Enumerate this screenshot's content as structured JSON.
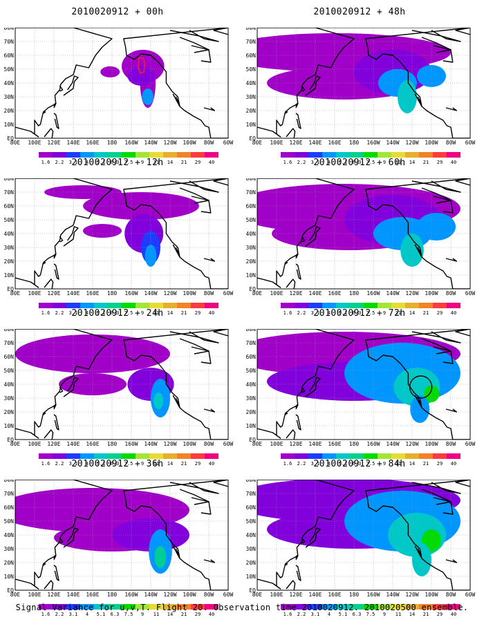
{
  "panels": [
    {
      "title": "2010020912 + 00h",
      "has_box": true,
      "circles": []
    },
    {
      "title": "2010020912 + 48h",
      "has_box": false,
      "circles": []
    },
    {
      "title": "2010020912 + 12h",
      "has_box": false,
      "circles": []
    },
    {
      "title": "2010020912 + 60h",
      "has_box": false,
      "circles": []
    },
    {
      "title": "2010020912 + 24h",
      "has_box": false,
      "circles": []
    },
    {
      "title": "2010020912 + 72h",
      "has_box": false,
      "circles": [
        {
          "lon": -111,
          "lat": 38
        }
      ]
    },
    {
      "title": "2010020912 + 36h",
      "has_box": false,
      "circles": []
    },
    {
      "title": "2010020912 + 84h",
      "has_box": false,
      "circles": []
    }
  ],
  "lat_labels": [
    "80N",
    "70N",
    "60N",
    "50N",
    "40N",
    "30N",
    "20N",
    "10N",
    "EQ"
  ],
  "lon_labels": [
    "80E",
    "100E",
    "120E",
    "140E",
    "160E",
    "180",
    "160W",
    "140W",
    "120W",
    "100W",
    "80W",
    "60W"
  ],
  "colorbar": {
    "labels": [
      "1.6",
      "2.2",
      "3.1",
      "4",
      "5.1",
      "6.3",
      "7.5",
      "9",
      "11",
      "14",
      "21",
      "29",
      "40"
    ],
    "colors": [
      "#a000c8",
      "#8200dc",
      "#1e3cff",
      "#0096ff",
      "#00c8c8",
      "#00d28c",
      "#00dc00",
      "#a0e632",
      "#e6dc32",
      "#e6af2d",
      "#f08228",
      "#fa3c3c",
      "#f00082"
    ]
  },
  "legend_colors": {
    "land": "#ffffff",
    "coastline": "#000000",
    "target_box": "#e6194b"
  },
  "footer": "Signal Variance for u,v,T. Flight 20. Observation time 2010020912. 2010020500 ensemble."
}
